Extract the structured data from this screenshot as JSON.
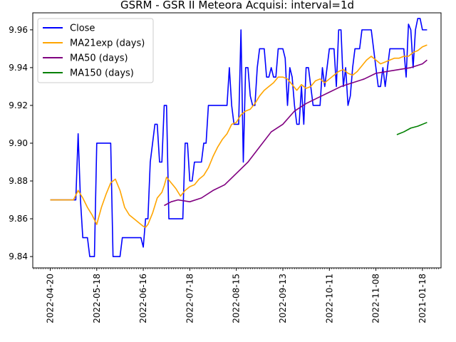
{
  "chart_data": {
    "type": "line",
    "title": "GSRM - GSR II Meteora Acquisi: interval=1d",
    "xlabel": "",
    "ylabel": "",
    "ylim": [
      9.834,
      9.969
    ],
    "yticks": [
      "9.84",
      "9.86",
      "9.88",
      "9.90",
      "9.92",
      "9.94",
      "9.96"
    ],
    "xticks": [
      "2022-04-20",
      "2022-05-18",
      "2022-06-16",
      "2022-07-18",
      "2022-08-15",
      "2022-09-13",
      "2022-10-11",
      "2022-11-08",
      "2021-01-18"
    ],
    "xtick_positions": [
      0,
      20,
      40,
      60,
      80,
      100,
      120,
      140,
      160
    ],
    "x_range": [
      -7.5,
      168
    ],
    "legend": {
      "placement": "top-left",
      "entries": [
        "Close",
        "MA21exp (days)",
        "MA50 (days)",
        "MA150 (days)"
      ]
    },
    "series": [
      {
        "name": "Close",
        "color": "#0000ff",
        "x": [
          0,
          1,
          2,
          3,
          4,
          5,
          6,
          7,
          8,
          9,
          10,
          11,
          12,
          13,
          14,
          15,
          16,
          17,
          18,
          19,
          20,
          21,
          22,
          23,
          24,
          25,
          26,
          27,
          28,
          29,
          30,
          31,
          32,
          33,
          34,
          35,
          36,
          37,
          38,
          39,
          40,
          41,
          42,
          43,
          44,
          45,
          46,
          47,
          48,
          49,
          50,
          51,
          52,
          53,
          54,
          55,
          56,
          57,
          58,
          59,
          60,
          61,
          62,
          63,
          64,
          65,
          66,
          67,
          68,
          69,
          70,
          71,
          72,
          73,
          74,
          75,
          76,
          77,
          78,
          79,
          80,
          81,
          82,
          83,
          84,
          85,
          86,
          87,
          88,
          89,
          90,
          91,
          92,
          93,
          94,
          95,
          96,
          97,
          98,
          99,
          100,
          101,
          102,
          103,
          104,
          105,
          106,
          107,
          108,
          109,
          110,
          111,
          112,
          113,
          114,
          115,
          116,
          117,
          118,
          119,
          120,
          121,
          122,
          123,
          124,
          125,
          126,
          127,
          128,
          129,
          130,
          131,
          132,
          133,
          134,
          135,
          136,
          137,
          138,
          139,
          140,
          141,
          142,
          143,
          144,
          145,
          146,
          147,
          148,
          149,
          150,
          151,
          152,
          153,
          154,
          155,
          156,
          157,
          158,
          159,
          160,
          161,
          162
        ],
        "values": [
          9.87,
          9.87,
          9.87,
          9.87,
          9.87,
          9.87,
          9.87,
          9.87,
          9.87,
          9.87,
          9.87,
          9.87,
          9.905,
          9.87,
          9.85,
          9.85,
          9.85,
          9.84,
          9.84,
          9.84,
          9.9,
          9.9,
          9.9,
          9.9,
          9.9,
          9.9,
          9.9,
          9.84,
          9.84,
          9.84,
          9.84,
          9.85,
          9.85,
          9.85,
          9.85,
          9.85,
          9.85,
          9.85,
          9.85,
          9.85,
          9.845,
          9.86,
          9.86,
          9.89,
          9.9,
          9.91,
          9.91,
          9.89,
          9.89,
          9.92,
          9.92,
          9.86,
          9.86,
          9.86,
          9.86,
          9.86,
          9.86,
          9.86,
          9.9,
          9.9,
          9.88,
          9.88,
          9.89,
          9.89,
          9.89,
          9.89,
          9.9,
          9.9,
          9.92,
          9.92,
          9.92,
          9.92,
          9.92,
          9.92,
          9.92,
          9.92,
          9.92,
          9.94,
          9.92,
          9.91,
          9.91,
          9.91,
          9.96,
          9.89,
          9.94,
          9.94,
          9.925,
          9.92,
          9.92,
          9.94,
          9.95,
          9.95,
          9.95,
          9.935,
          9.935,
          9.94,
          9.935,
          9.935,
          9.95,
          9.95,
          9.95,
          9.945,
          9.92,
          9.94,
          9.935,
          9.92,
          9.91,
          9.91,
          9.93,
          9.91,
          9.94,
          9.94,
          9.93,
          9.92,
          9.92,
          9.92,
          9.92,
          9.94,
          9.93,
          9.94,
          9.95,
          9.95,
          9.95,
          9.93,
          9.96,
          9.96,
          9.93,
          9.94,
          9.92,
          9.925,
          9.94,
          9.95,
          9.95,
          9.95,
          9.96,
          9.96,
          9.96,
          9.96,
          9.96,
          9.95,
          9.94,
          9.93,
          9.93,
          9.94,
          9.93,
          9.94,
          9.95,
          9.95,
          9.95,
          9.95,
          9.95,
          9.95,
          9.95,
          9.935,
          9.963,
          9.96,
          9.94,
          9.96,
          9.966,
          9.966,
          9.96,
          9.96,
          9.96
        ]
      },
      {
        "name": "MA21exp (days)",
        "color": "#ffa500",
        "x": [
          0,
          5,
          10,
          12,
          14,
          16,
          18,
          20,
          22,
          24,
          26,
          28,
          30,
          32,
          34,
          36,
          38,
          40,
          41,
          42,
          44,
          46,
          48,
          49,
          50,
          52,
          54,
          56,
          58,
          60,
          62,
          64,
          66,
          68,
          70,
          72,
          74,
          76,
          78,
          80,
          82,
          84,
          86,
          88,
          90,
          92,
          94,
          96,
          98,
          100,
          102,
          104,
          106,
          108,
          110,
          112,
          114,
          116,
          118,
          120,
          122,
          124,
          126,
          128,
          130,
          132,
          134,
          136,
          138,
          140,
          142,
          144,
          146,
          148,
          150,
          152,
          154,
          156,
          158,
          160,
          162
        ],
        "values": [
          9.87,
          9.87,
          9.87,
          9.875,
          9.871,
          9.866,
          9.862,
          9.857,
          9.866,
          9.873,
          9.879,
          9.881,
          9.875,
          9.866,
          9.862,
          9.86,
          9.858,
          9.856,
          9.8555,
          9.857,
          9.863,
          9.871,
          9.874,
          9.8775,
          9.882,
          9.879,
          9.876,
          9.872,
          9.875,
          9.877,
          9.878,
          9.881,
          9.883,
          9.887,
          9.893,
          9.898,
          9.902,
          9.905,
          9.91,
          9.911,
          9.915,
          9.917,
          9.918,
          9.921,
          9.925,
          9.928,
          9.93,
          9.932,
          9.935,
          9.935,
          9.934,
          9.931,
          9.928,
          9.931,
          9.929,
          9.93,
          9.933,
          9.934,
          9.932,
          9.934,
          9.936,
          9.938,
          9.939,
          9.937,
          9.936,
          9.938,
          9.941,
          9.944,
          9.946,
          9.944,
          9.942,
          9.943,
          9.944,
          9.945,
          9.945,
          9.946,
          9.946,
          9.948,
          9.949,
          9.951,
          9.952
        ]
      },
      {
        "name": "MA50 (days)",
        "color": "#800080",
        "x": [
          49,
          52,
          55,
          60,
          65,
          70,
          75,
          80,
          85,
          90,
          95,
          100,
          105,
          110,
          115,
          120,
          125,
          130,
          135,
          140,
          145,
          150,
          155,
          160,
          162
        ],
        "values": [
          9.867,
          9.869,
          9.87,
          9.869,
          9.871,
          9.875,
          9.878,
          9.884,
          9.89,
          9.898,
          9.906,
          9.91,
          9.917,
          9.921,
          9.924,
          9.927,
          9.93,
          9.932,
          9.934,
          9.937,
          9.938,
          9.939,
          9.94,
          9.942,
          9.944
        ]
      },
      {
        "name": "MA150 (days)",
        "color": "#008000",
        "x": [
          149,
          152,
          155,
          158,
          162
        ],
        "values": [
          9.9045,
          9.906,
          9.908,
          9.909,
          9.911
        ]
      }
    ]
  }
}
